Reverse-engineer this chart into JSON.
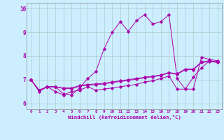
{
  "xlabel": "Windchill (Refroidissement éolien,°C)",
  "bg_color": "#cceeff",
  "line_color": "#aa00aa",
  "grid_color": "#aacccc",
  "xlim": [
    -0.5,
    23.5
  ],
  "ylim": [
    5.75,
    10.25
  ],
  "yticks": [
    6,
    7,
    8,
    9,
    10
  ],
  "xticks": [
    0,
    1,
    2,
    3,
    4,
    5,
    6,
    7,
    8,
    9,
    10,
    11,
    12,
    13,
    14,
    15,
    16,
    17,
    18,
    19,
    20,
    21,
    22,
    23
  ],
  "series": [
    [
      7.0,
      6.5,
      6.7,
      6.7,
      6.4,
      6.35,
      6.65,
      7.05,
      7.35,
      8.3,
      9.0,
      9.45,
      9.05,
      9.5,
      9.75,
      9.35,
      9.45,
      9.75,
      7.05,
      6.6,
      6.6,
      7.95,
      7.85,
      7.8
    ],
    [
      7.0,
      6.55,
      6.7,
      6.5,
      6.35,
      6.5,
      6.55,
      6.7,
      6.55,
      6.6,
      6.65,
      6.7,
      6.75,
      6.8,
      6.9,
      6.95,
      7.05,
      7.15,
      6.6,
      6.6,
      7.1,
      7.5,
      7.8,
      7.75
    ],
    [
      7.0,
      6.55,
      6.7,
      6.7,
      6.65,
      6.65,
      6.75,
      6.8,
      6.82,
      6.85,
      6.9,
      6.95,
      7.0,
      7.05,
      7.1,
      7.15,
      7.2,
      7.3,
      7.25,
      7.45,
      7.45,
      7.75,
      7.8,
      7.75
    ],
    [
      7.0,
      6.55,
      6.7,
      6.7,
      6.62,
      6.62,
      6.72,
      6.77,
      6.78,
      6.82,
      6.88,
      6.92,
      6.97,
      7.02,
      7.08,
      7.12,
      7.18,
      7.28,
      7.22,
      7.42,
      7.42,
      7.72,
      7.77,
      7.72
    ]
  ]
}
